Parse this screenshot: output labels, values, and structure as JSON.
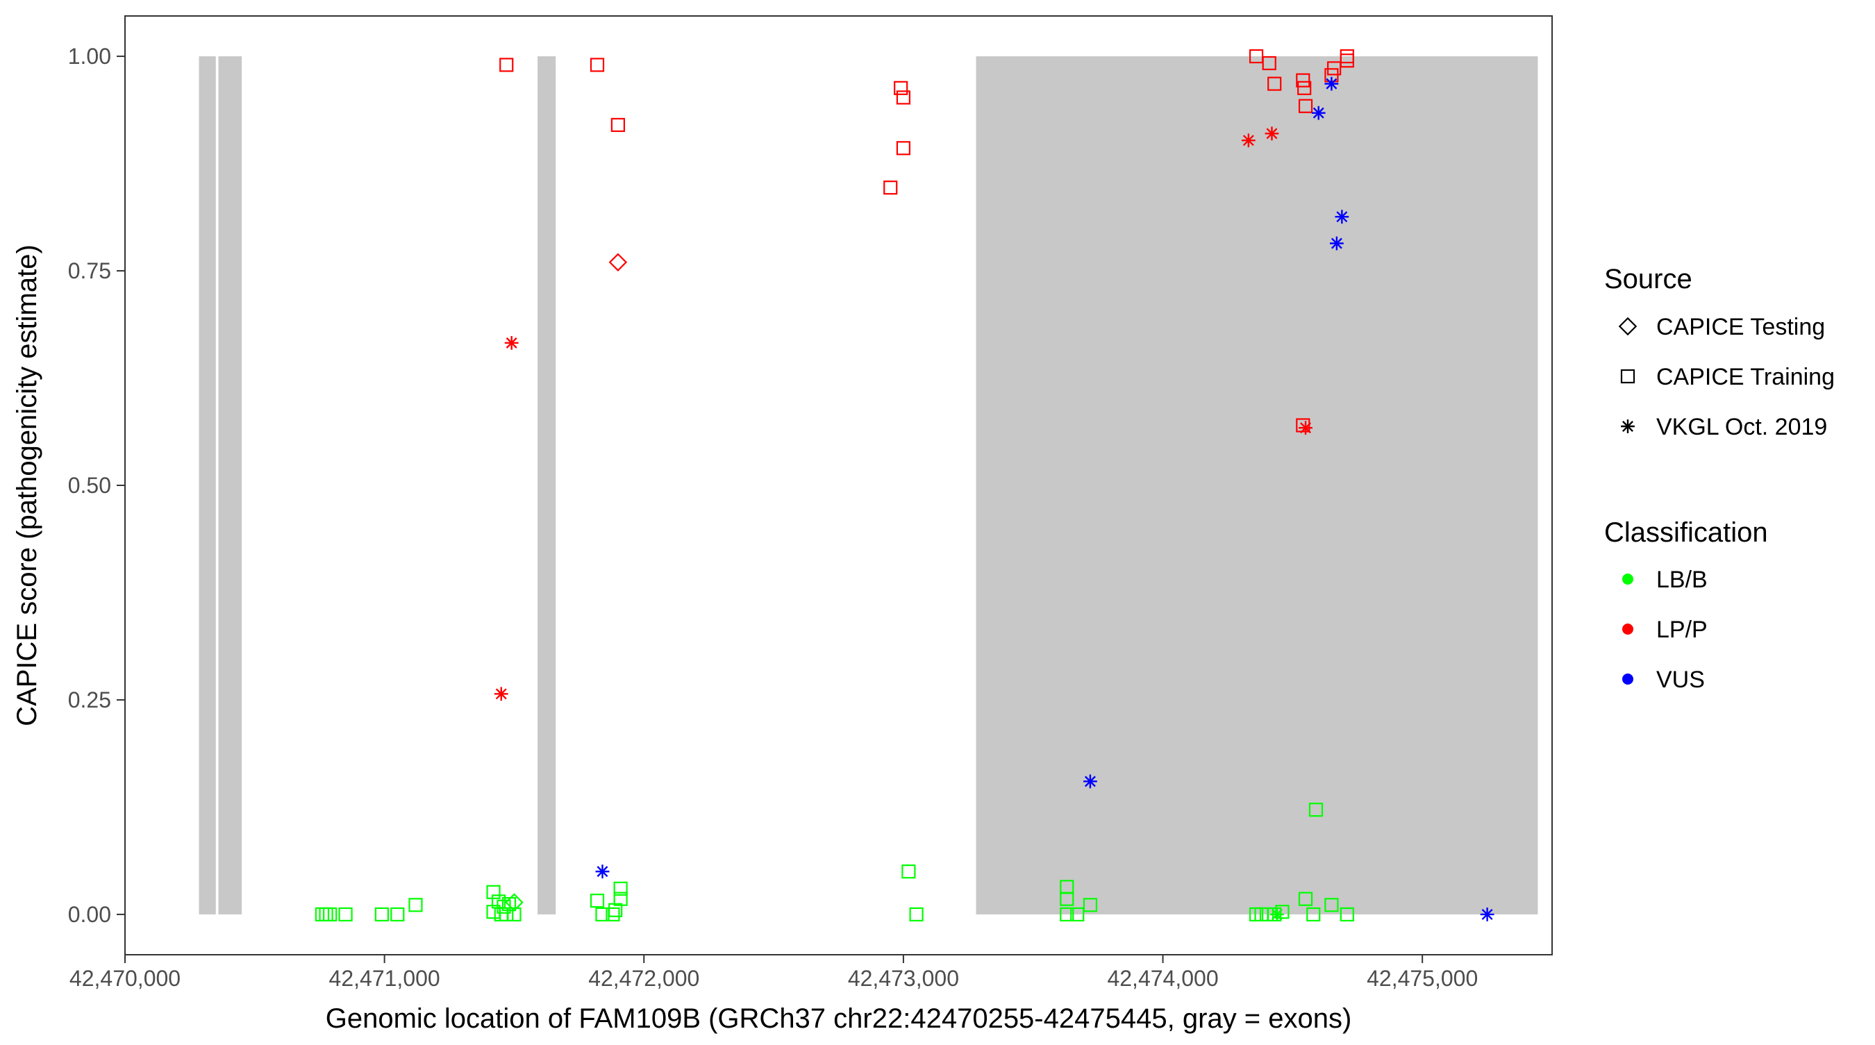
{
  "chart_data": {
    "type": "scatter",
    "xlabel": "Genomic location of FAM109B (GRCh37 chr22:42470255-42475445, gray = exons)",
    "ylabel": "CAPICE score (pathogenicity estimate)",
    "xlim": [
      42470000,
      42475500
    ],
    "ylim": [
      -0.047,
      1.047
    ],
    "x_ticks": [
      42470000,
      42471000,
      42472000,
      42473000,
      42474000,
      42475000
    ],
    "x_tick_labels": [
      "42,470,000",
      "42,471,000",
      "42,472,000",
      "42,473,000",
      "42,474,000",
      "42,475,000"
    ],
    "y_ticks": [
      0,
      0.25,
      0.5,
      0.75,
      1.0
    ],
    "y_tick_labels": [
      "0.00",
      "0.25",
      "0.50",
      "0.75",
      "1.00"
    ],
    "grid": false,
    "exons": [
      {
        "start": 42470285,
        "end": 42470350
      },
      {
        "start": 42470360,
        "end": 42470450
      },
      {
        "start": 42471590,
        "end": 42471660
      },
      {
        "start": 42473280,
        "end": 42475445
      }
    ],
    "legend": {
      "placement": "right",
      "source_title": "Source",
      "source_entries": [
        {
          "label": "CAPICE Testing",
          "shape": "diamond"
        },
        {
          "label": "CAPICE Training",
          "shape": "square"
        },
        {
          "label": "VKGL Oct. 2019",
          "shape": "asterisk"
        }
      ],
      "class_title": "Classification",
      "class_entries": [
        {
          "label": "LB/B",
          "color": "#00ff00"
        },
        {
          "label": "LP/P",
          "color": "#ff0000"
        },
        {
          "label": "VUS",
          "color": "#0000ff"
        }
      ]
    },
    "colors": {
      "LB/B": "#00ff00",
      "LP/P": "#ff0000",
      "VUS": "#0000ff",
      "exon": "#c8c8c8"
    },
    "series": [
      {
        "source": "CAPICE Training",
        "classification": "LB/B",
        "shape": "square",
        "points": [
          [
            42470760,
            0.0
          ],
          [
            42470775,
            0.0
          ],
          [
            42470790,
            0.0
          ],
          [
            42470850,
            0.0
          ],
          [
            42470990,
            0.0
          ],
          [
            42471050,
            0.0
          ],
          [
            42471120,
            0.011
          ],
          [
            42471420,
            0.026
          ],
          [
            42471420,
            0.003
          ],
          [
            42471440,
            0.015
          ],
          [
            42471450,
            0.0
          ],
          [
            42471460,
            0.009
          ],
          [
            42471470,
            0.0
          ],
          [
            42471480,
            0.012
          ],
          [
            42471500,
            0.0
          ],
          [
            42471820,
            0.016
          ],
          [
            42471840,
            0.0
          ],
          [
            42471880,
            0.0
          ],
          [
            42471890,
            0.005
          ],
          [
            42471910,
            0.03
          ],
          [
            42471910,
            0.018
          ],
          [
            42473020,
            0.05
          ],
          [
            42473050,
            0.0
          ],
          [
            42473630,
            0.032
          ],
          [
            42473630,
            0.018
          ],
          [
            42473630,
            0.0
          ],
          [
            42473670,
            0.0
          ],
          [
            42473720,
            0.011
          ],
          [
            42474360,
            0.0
          ],
          [
            42474380,
            0.0
          ],
          [
            42474400,
            0.0
          ],
          [
            42474430,
            0.0
          ],
          [
            42474460,
            0.003
          ],
          [
            42474550,
            0.018
          ],
          [
            42474580,
            0.0
          ],
          [
            42474590,
            0.122
          ],
          [
            42474650,
            0.011
          ],
          [
            42474710,
            0.0
          ]
        ]
      },
      {
        "source": "CAPICE Testing",
        "classification": "LB/B",
        "shape": "diamond",
        "points": [
          [
            42471500,
            0.014
          ]
        ]
      },
      {
        "source": "VKGL Oct. 2019",
        "classification": "LB/B",
        "shape": "asterisk",
        "points": [
          [
            42474440,
            0.0
          ]
        ]
      },
      {
        "source": "CAPICE Training",
        "classification": "LP/P",
        "shape": "square",
        "points": [
          [
            42471470,
            0.99
          ],
          [
            42471820,
            0.99
          ],
          [
            42471900,
            0.92
          ],
          [
            42472950,
            0.847
          ],
          [
            42472990,
            0.963
          ],
          [
            42473000,
            0.952
          ],
          [
            42473000,
            0.893
          ],
          [
            42474360,
            1.0
          ],
          [
            42474410,
            0.992
          ],
          [
            42474430,
            0.968
          ],
          [
            42474540,
            0.972
          ],
          [
            42474545,
            0.963
          ],
          [
            42474550,
            0.942
          ],
          [
            42474540,
            0.57
          ],
          [
            42474650,
            0.978
          ],
          [
            42474660,
            0.986
          ],
          [
            42474710,
            0.995
          ],
          [
            42474710,
            1.0
          ]
        ]
      },
      {
        "source": "CAPICE Testing",
        "classification": "LP/P",
        "shape": "diamond",
        "points": [
          [
            42471900,
            0.76
          ]
        ]
      },
      {
        "source": "VKGL Oct. 2019",
        "classification": "LP/P",
        "shape": "asterisk",
        "points": [
          [
            42471450,
            0.257
          ],
          [
            42471490,
            0.666
          ],
          [
            42474330,
            0.902
          ],
          [
            42474420,
            0.91
          ],
          [
            42474550,
            0.567
          ]
        ]
      },
      {
        "source": "VKGL Oct. 2019",
        "classification": "VUS",
        "shape": "asterisk",
        "points": [
          [
            42471840,
            0.05
          ],
          [
            42473720,
            0.155
          ],
          [
            42474600,
            0.934
          ],
          [
            42474650,
            0.968
          ],
          [
            42474670,
            0.782
          ],
          [
            42474690,
            0.813
          ],
          [
            42475250,
            0.0
          ]
        ]
      }
    ]
  }
}
